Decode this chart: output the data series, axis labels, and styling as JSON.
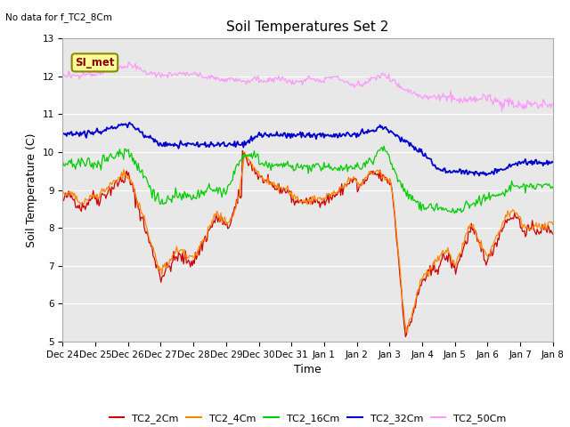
{
  "title": "Soil Temperatures Set 2",
  "ylabel": "Soil Temperature (C)",
  "xlabel": "Time",
  "subtitle": "No data for f_TC2_8Cm",
  "annotation": "SI_met",
  "ylim": [
    5.0,
    13.0
  ],
  "yticks": [
    5.0,
    6.0,
    7.0,
    8.0,
    9.0,
    10.0,
    11.0,
    12.0,
    13.0
  ],
  "xtick_labels": [
    "Dec 24",
    "Dec 25",
    "Dec 26",
    "Dec 27",
    "Dec 28",
    "Dec 29",
    "Dec 30",
    "Dec 31",
    "Jan 1",
    "Jan 2",
    "Jan 3",
    "Jan 4",
    "Jan 5",
    "Jan 6",
    "Jan 7",
    "Jan 8"
  ],
  "colors": {
    "TC2_2Cm": "#cc0000",
    "TC2_4Cm": "#ff8800",
    "TC2_16Cm": "#00cc00",
    "TC2_32Cm": "#0000cc",
    "TC2_50Cm": "#ff99ff"
  },
  "fig_bg_color": "#ffffff",
  "plot_bg_color": "#e8e8e8",
  "grid_color": "#ffffff",
  "title_fontsize": 11,
  "axis_fontsize": 9,
  "tick_fontsize": 7.5,
  "legend_fontsize": 8
}
